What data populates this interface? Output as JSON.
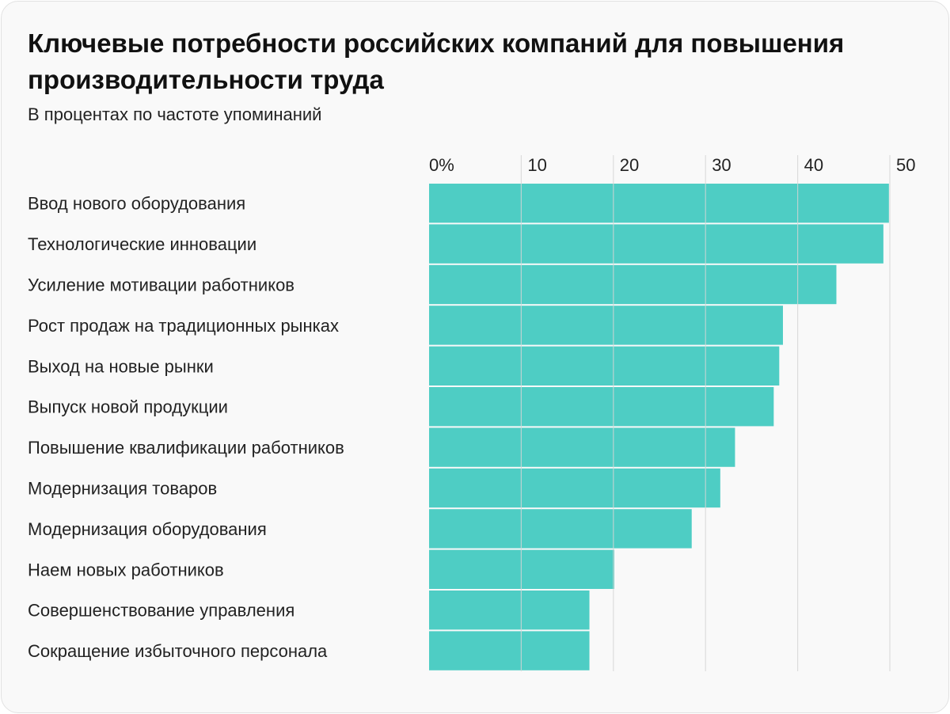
{
  "chart_data": {
    "type": "bar",
    "orientation": "horizontal",
    "title": "Ключевые потребности российских компаний для повышения производительности труда",
    "subtitle": "В процентах по частоте упоминаний",
    "categories": [
      "Ввод нового оборудования",
      "Технологические инновации",
      "Усиление мотивации работников",
      "Рост продаж на традиционных рынках",
      "Выход на новые рынки",
      "Выпуск новой продукции",
      "Повышение квалификации работников",
      "Модернизация товаров",
      "Модернизация оборудования",
      "Наем новых работников",
      "Совершенствование управления",
      "Сокращение избыточного персонала"
    ],
    "values": [
      49.9,
      49.3,
      44.2,
      38.4,
      38.0,
      37.4,
      33.2,
      31.6,
      28.5,
      20.1,
      17.4,
      17.4
    ],
    "xlim": [
      0,
      50
    ],
    "ticks": [
      "0%",
      "10",
      "20",
      "30",
      "40",
      "50"
    ],
    "tick_values": [
      0,
      10,
      20,
      30,
      40,
      50
    ],
    "grid": true,
    "bar_color": "#4ecdc4",
    "grid_color": "#d4d4d4"
  }
}
